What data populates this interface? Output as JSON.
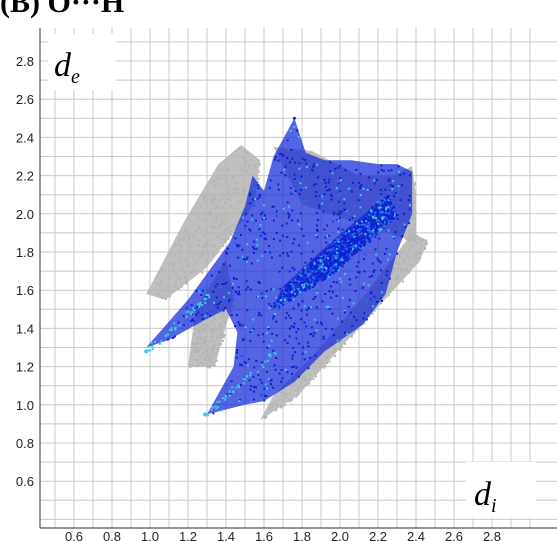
{
  "panel_label": "(B) O···H",
  "chart_data": {
    "type": "heatmap",
    "title": "",
    "xlabel": {
      "symbol": "d",
      "subscript": "i"
    },
    "ylabel": {
      "symbol": "d",
      "subscript": "e"
    },
    "x_ticks": [
      "0.6",
      "0.8",
      "1.0",
      "1.2",
      "1.4",
      "1.6",
      "1.8",
      "2.0",
      "2.2",
      "2.4",
      "2.6",
      "2.8"
    ],
    "y_ticks": [
      "0.6",
      "0.8",
      "1.0",
      "1.2",
      "1.4",
      "1.6",
      "1.8",
      "2.0",
      "2.2",
      "2.4",
      "2.6",
      "2.8"
    ],
    "xlim": [
      0.4,
      3.0
    ],
    "ylim": [
      0.4,
      3.0
    ],
    "grid": true,
    "colors": {
      "full_fingerprint": "#b4b4b4",
      "highlighted_low": "#0a1ed2",
      "highlighted_high": "#40c8e6",
      "grid": "#c8c8c8"
    },
    "series": [
      {
        "role": "full-fingerprint",
        "color": "#b4b4b4",
        "regions": [
          [
            [
              0.98,
              1.58
            ],
            [
              1.18,
              1.96
            ],
            [
              1.36,
              2.26
            ],
            [
              1.48,
              2.36
            ],
            [
              1.58,
              2.28
            ],
            [
              1.55,
              2.05
            ],
            [
              1.3,
              1.72
            ],
            [
              1.08,
              1.55
            ]
          ],
          [
            [
              1.2,
              1.2
            ],
            [
              1.34,
              1.2
            ],
            [
              1.44,
              1.55
            ],
            [
              1.4,
              1.76
            ],
            [
              1.24,
              1.5
            ]
          ],
          [
            [
              1.58,
              0.92
            ],
            [
              1.78,
              1.05
            ],
            [
              2.05,
              1.35
            ],
            [
              2.3,
              1.62
            ],
            [
              2.42,
              1.75
            ],
            [
              2.46,
              1.86
            ],
            [
              2.38,
              1.9
            ],
            [
              2.15,
              1.6
            ],
            [
              1.85,
              1.25
            ],
            [
              1.65,
              1.05
            ]
          ],
          [
            [
              1.65,
              2.35
            ],
            [
              1.85,
              2.33
            ],
            [
              2.1,
              2.2
            ],
            [
              2.28,
              2.2
            ],
            [
              2.38,
              2.25
            ],
            [
              2.4,
              2.1
            ],
            [
              2.4,
              1.85
            ],
            [
              2.1,
              1.95
            ],
            [
              1.8,
              2.05
            ]
          ]
        ]
      },
      {
        "role": "highlighted-contacts",
        "color": "#1428d8",
        "regions": [
          [
            [
              0.98,
              1.3
            ],
            [
              1.2,
              1.55
            ],
            [
              1.42,
              1.85
            ],
            [
              1.5,
              2.04
            ],
            [
              1.54,
              2.2
            ],
            [
              1.6,
              2.12
            ],
            [
              1.65,
              2.3
            ],
            [
              1.76,
              2.5
            ],
            [
              1.82,
              2.32
            ],
            [
              1.92,
              2.28
            ],
            [
              2.06,
              2.28
            ],
            [
              2.2,
              2.26
            ],
            [
              2.3,
              2.26
            ],
            [
              2.38,
              2.22
            ],
            [
              2.38,
              2.0
            ],
            [
              2.3,
              1.8
            ],
            [
              2.24,
              1.58
            ],
            [
              2.12,
              1.42
            ],
            [
              1.92,
              1.28
            ],
            [
              1.76,
              1.12
            ],
            [
              1.6,
              1.02
            ],
            [
              1.5,
              1.0
            ],
            [
              1.3,
              0.95
            ],
            [
              1.44,
              1.2
            ],
            [
              1.46,
              1.38
            ],
            [
              1.4,
              1.5
            ],
            [
              1.28,
              1.44
            ],
            [
              1.1,
              1.34
            ]
          ],
          [
            [
              1.64,
              1.5
            ],
            [
              1.98,
              1.7
            ],
            [
              2.3,
              2.0
            ],
            [
              2.25,
              2.1
            ],
            [
              1.95,
              1.85
            ],
            [
              1.7,
              1.62
            ]
          ]
        ]
      }
    ],
    "sharp_tips": [
      {
        "x": 0.98,
        "y": 1.28
      },
      {
        "x": 1.29,
        "y": 0.95
      }
    ],
    "peak_spike": {
      "x": 1.76,
      "y": 2.5
    }
  }
}
